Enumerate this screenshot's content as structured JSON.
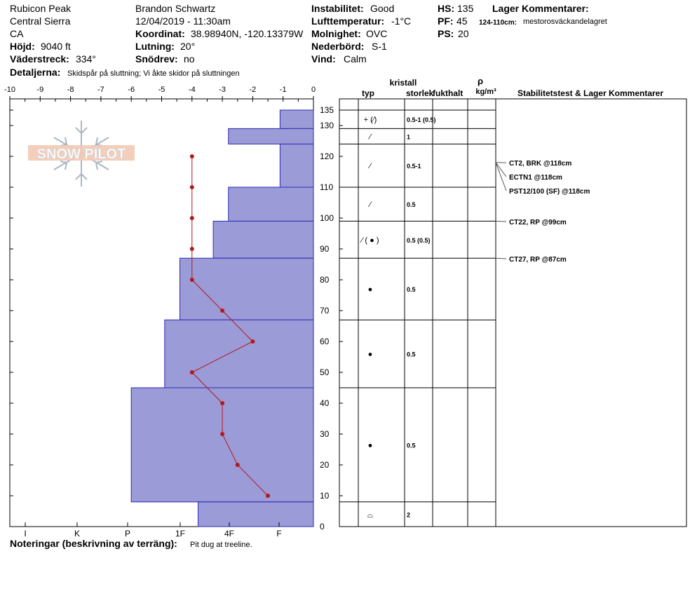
{
  "header": {
    "location": "Rubicon Peak",
    "range": "Central Sierra",
    "state": "CA",
    "elevation_label": "Höjd:",
    "elevation": "9040 ft",
    "aspect_label": "Väderstreck:",
    "aspect": "334°",
    "details_label": "Detaljerna:",
    "details": "Skidspår på sluttning;  Vi åkte skidor på sluttningen",
    "observer": "Brandon Schwartz",
    "datetime": "12/04/2019 - 11:30am",
    "coord_label": "Koordinat:",
    "coord": "38.98940N, -120.13379W",
    "slope_label": "Lutning:",
    "slope": "20°",
    "drift_label": "Snödrev:",
    "drift": "no",
    "instability_label": "Instabilitet:",
    "instability": "Good",
    "airtemp_label": "Lufttemperatur:",
    "airtemp": "-1°C",
    "cloud_label": "Molnighet:",
    "cloud": "OVC",
    "precip_label": "Nederbörd:",
    "precip": "S-1",
    "wind_label": "Vind:",
    "wind": "Calm",
    "hs_label": "HS:",
    "hs": "135",
    "pf_label": "PF:",
    "pf": "45",
    "ps_label": "PS:",
    "ps": "20",
    "layer_comments_label": "Lager Kommentarer:",
    "layer_comment_range": "124-110cm:",
    "layer_comment": "mestorosväckandelagret"
  },
  "notes": {
    "label": "Noteringar (beskrivning av terräng):",
    "text": "Pit dug at treeline."
  },
  "table_headers": {
    "crystal": "kristall",
    "type": "typ",
    "size": "storlek",
    "moisture": "fukthalt",
    "rho": "ρ",
    "density_unit": "kg/m³",
    "stability": "Stabilitetstest & Lager Kommentarer"
  },
  "logo_text": "SNOW PILOT",
  "chart_data": {
    "type": "snow-profile",
    "temp_axis": {
      "ticks": [
        -10,
        -9,
        -8,
        -7,
        -6,
        -5,
        -4,
        -3,
        -2,
        -1,
        0
      ],
      "range": [
        -10,
        0
      ]
    },
    "height_axis": {
      "range": [
        0,
        135
      ],
      "ticks": [
        0,
        10,
        20,
        30,
        40,
        50,
        60,
        70,
        80,
        90,
        100,
        110,
        120,
        130,
        135
      ]
    },
    "hardness_axis": {
      "ticks": [
        "I",
        "K",
        "P",
        "1F",
        "4F",
        "F"
      ]
    },
    "hardness_layers": [
      {
        "top": 135,
        "bottom": 129,
        "temp": -1.1
      },
      {
        "top": 129,
        "bottom": 124,
        "temp": -2.8
      },
      {
        "top": 124,
        "bottom": 110,
        "temp": -1.1
      },
      {
        "top": 110,
        "bottom": 99,
        "temp": -2.8
      },
      {
        "top": 99,
        "bottom": 87,
        "temp": -3.3
      },
      {
        "top": 87,
        "bottom": 67,
        "temp": -4.4
      },
      {
        "top": 67,
        "bottom": 45,
        "temp": -4.9
      },
      {
        "top": 45,
        "bottom": 8,
        "temp": -6.0
      },
      {
        "top": 8,
        "bottom": 0,
        "temp": -3.8
      }
    ],
    "temperature_profile": [
      {
        "height": 120,
        "temp": -4.0
      },
      {
        "height": 110,
        "temp": -4.0
      },
      {
        "height": 100,
        "temp": -4.0
      },
      {
        "height": 90,
        "temp": -4.0
      },
      {
        "height": 80,
        "temp": -4.0
      },
      {
        "height": 70,
        "temp": -3.0
      },
      {
        "height": 60,
        "temp": -2.0
      },
      {
        "height": 50,
        "temp": -4.0
      },
      {
        "height": 40,
        "temp": -3.0
      },
      {
        "height": 30,
        "temp": -3.0
      },
      {
        "height": 20,
        "temp": -2.5
      },
      {
        "height": 10,
        "temp": -1.5
      }
    ],
    "layers": [
      {
        "top": 135,
        "bottom": 129,
        "crystal": "+ (⁄)",
        "size": "0.5-1 (0.5)"
      },
      {
        "top": 129,
        "bottom": 124,
        "crystal": "⁄",
        "size": "1"
      },
      {
        "top": 124,
        "bottom": 110,
        "crystal": "⁄",
        "size": "0.5-1"
      },
      {
        "top": 110,
        "bottom": 99,
        "crystal": "⁄",
        "size": "0.5"
      },
      {
        "top": 99,
        "bottom": 87,
        "crystal": "⁄ ( ● )",
        "size": "0.5 (0.5)"
      },
      {
        "top": 87,
        "bottom": 67,
        "crystal": "●",
        "size": "0.5"
      },
      {
        "top": 67,
        "bottom": 45,
        "crystal": "●",
        "size": "0.5"
      },
      {
        "top": 45,
        "bottom": 8,
        "crystal": "●",
        "size": "0.5"
      },
      {
        "top": 8,
        "bottom": 0,
        "crystal": "⌓",
        "size": "2"
      }
    ],
    "stability_tests": [
      {
        "height": 118,
        "text": "CT2, BRK @118cm"
      },
      {
        "height": 118,
        "text": "ECTN1 @118cm"
      },
      {
        "height": 118,
        "text": "PST12/100 (SF) @118cm"
      },
      {
        "height": 99,
        "text": "CT22, RP @99cm"
      },
      {
        "height": 87,
        "text": "CT27, RP @87cm"
      }
    ],
    "colors": {
      "hardness_fill": "#9b9bd8",
      "hardness_stroke": "#2b2bb3",
      "temperature": "#b01a1a"
    }
  }
}
